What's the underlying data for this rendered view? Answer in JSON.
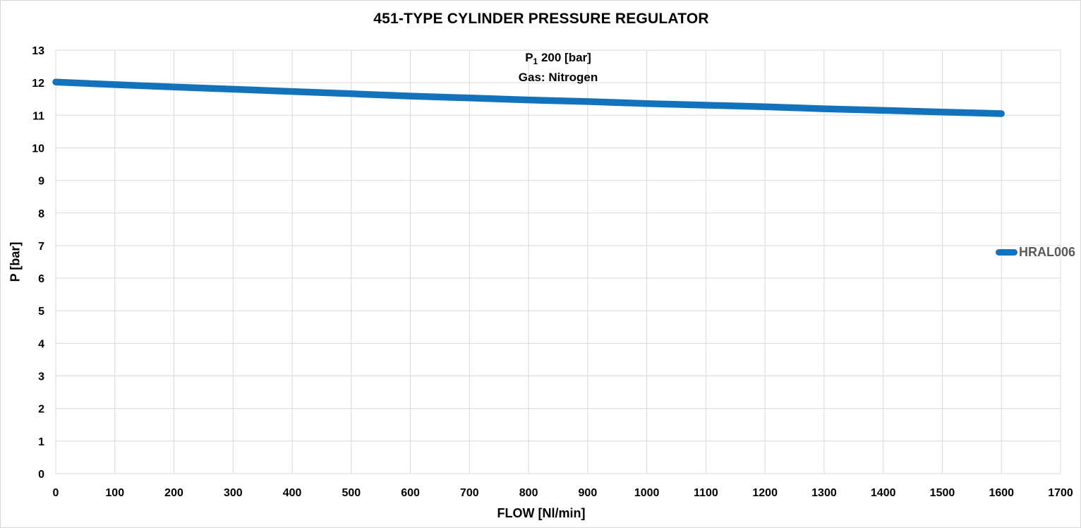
{
  "colors": {
    "series_blue": "#1272bc",
    "grid_gray": "#d9d9d9",
    "legend_text": "#595959",
    "tick_text": "#000000"
  },
  "chart_data": {
    "type": "line",
    "title": "451-TYPE CYLINDER PRESSURE REGULATOR",
    "subtitle": {
      "p_prefix": "P",
      "p_sub": "1",
      "p_rest": " 200 [bar]",
      "line2": "Gas: Nitrogen"
    },
    "xlabel": "FLOW [Nl/min]",
    "ylabel": "P [bar]",
    "xlim": [
      0,
      1700
    ],
    "ylim": [
      0,
      13
    ],
    "x_ticks": [
      0,
      100,
      200,
      300,
      400,
      500,
      600,
      700,
      800,
      900,
      1000,
      1100,
      1200,
      1300,
      1400,
      1500,
      1600,
      1700
    ],
    "y_ticks": [
      0,
      1,
      2,
      3,
      4,
      5,
      6,
      7,
      8,
      9,
      10,
      11,
      12,
      13
    ],
    "grid": true,
    "legend_position": "right",
    "series": [
      {
        "name": "HRAL006",
        "x": [
          0,
          100,
          200,
          300,
          400,
          500,
          600,
          700,
          800,
          900,
          1000,
          1100,
          1200,
          1300,
          1400,
          1500,
          1600
        ],
        "values": [
          12.02,
          11.94,
          11.87,
          11.8,
          11.73,
          11.66,
          11.59,
          11.53,
          11.47,
          11.42,
          11.36,
          11.31,
          11.26,
          11.2,
          11.15,
          11.1,
          11.05
        ]
      }
    ]
  }
}
